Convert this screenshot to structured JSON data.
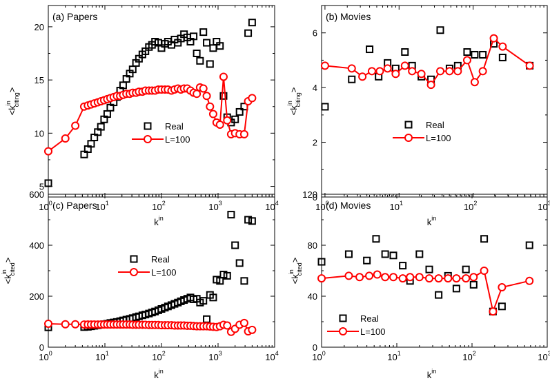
{
  "chart_data": [
    {
      "type": "scatter",
      "panel_label": "(a) Papers",
      "xlabel": "k",
      "xlabel_sup": "in",
      "ylabel": "<k",
      "ylabel_sup": "in",
      "ylabel_sub": "citing",
      "ylabel_end": ">",
      "xscale": "log",
      "xlim": [
        1,
        10000
      ],
      "ylim": [
        4,
        22
      ],
      "yticks": [
        5,
        10,
        15,
        20
      ],
      "legend_position": "bottom-center",
      "series": [
        {
          "name": "Real",
          "marker": "square",
          "color": "#000000",
          "connected": false,
          "x": [
            1,
            4.3,
            5,
            5.7,
            6.5,
            7.5,
            8.5,
            9.7,
            11,
            12.5,
            14.3,
            16.3,
            18.6,
            21,
            24,
            27.5,
            31,
            35.5,
            40,
            46,
            52,
            60,
            68,
            77,
            88,
            100,
            115,
            130,
            150,
            170,
            195,
            220,
            250,
            285,
            325,
            370,
            420,
            480,
            550,
            630,
            720,
            820,
            940,
            1080,
            1250,
            1450,
            1700,
            2000,
            2400,
            2900,
            3400,
            4000
          ],
          "y": [
            5.3,
            8.0,
            8.5,
            9.0,
            9.6,
            10.1,
            10.6,
            11.3,
            11.8,
            12.4,
            12.9,
            13.4,
            14.0,
            14.5,
            15.1,
            15.6,
            16.0,
            16.6,
            17.0,
            17.4,
            17.7,
            18.1,
            18.3,
            18.6,
            18.5,
            18.0,
            18.4,
            18.6,
            18.3,
            18.8,
            18.5,
            18.9,
            19.3,
            19.0,
            18.6,
            19.1,
            17.5,
            16.8,
            19.5,
            18.5,
            16.5,
            18.0,
            18.6,
            18.2,
            13.5,
            11.5,
            11.0,
            11.3,
            12.0,
            12.5,
            19.4,
            20.4
          ]
        },
        {
          "name": "L=100",
          "marker": "circle",
          "color": "#ff0000",
          "connected": true,
          "x": [
            1,
            2,
            3,
            4.3,
            5,
            5.7,
            6.5,
            7.5,
            8.5,
            9.7,
            11,
            12.5,
            14.3,
            16.3,
            18.6,
            21,
            24,
            27.5,
            31,
            35.5,
            40,
            46,
            52,
            60,
            68,
            77,
            88,
            100,
            115,
            130,
            150,
            170,
            195,
            220,
            250,
            285,
            325,
            370,
            420,
            480,
            550,
            630,
            720,
            820,
            940,
            1080,
            1250,
            1450,
            1700,
            2000,
            2400,
            2900,
            3400,
            4000
          ],
          "y": [
            8.3,
            9.5,
            10.7,
            12.5,
            12.6,
            12.7,
            12.8,
            12.9,
            13.0,
            13.1,
            13.2,
            13.3,
            13.4,
            13.5,
            13.5,
            13.6,
            13.7,
            13.7,
            13.8,
            13.8,
            13.9,
            13.9,
            14.0,
            14.0,
            14.0,
            14.0,
            14.1,
            14.1,
            14.1,
            14.1,
            14.0,
            14.1,
            14.2,
            14.1,
            14.2,
            14.2,
            14.0,
            13.8,
            13.7,
            14.3,
            14.2,
            13.5,
            12.5,
            11.8,
            11.0,
            10.8,
            15.3,
            11.2,
            9.9,
            10.0,
            9.9,
            9.9,
            13.0,
            13.3
          ]
        }
      ]
    },
    {
      "type": "scatter",
      "panel_label": "(b) Movies",
      "xlabel": "k",
      "xlabel_sup": "in",
      "ylabel": "<k",
      "ylabel_sup": "in",
      "ylabel_sub": "citing",
      "ylabel_end": ">",
      "xscale": "log",
      "xlim": [
        0.9,
        1000
      ],
      "ylim": [
        0,
        7
      ],
      "yticks": [
        0,
        2,
        4,
        6
      ],
      "legend_position": "bottom-center",
      "series": [
        {
          "name": "Real",
          "marker": "square",
          "color": "#000000",
          "connected": false,
          "x": [
            1,
            2.3,
            4,
            5.3,
            7,
            9,
            12,
            15,
            20,
            27,
            36,
            48,
            62,
            83,
            105,
            135,
            190,
            250,
            580
          ],
          "y": [
            3.3,
            4.3,
            5.4,
            4.4,
            4.9,
            4.7,
            5.3,
            4.8,
            4.4,
            4.3,
            6.1,
            4.7,
            4.8,
            5.3,
            5.2,
            5.2,
            5.6,
            5.1,
            4.8
          ]
        },
        {
          "name": "L=100",
          "marker": "circle",
          "color": "#ff0000",
          "connected": true,
          "x": [
            1,
            2.3,
            3.2,
            4.3,
            5.5,
            7,
            9,
            12,
            15,
            20,
            27,
            36,
            48,
            62,
            83,
            105,
            135,
            190,
            250,
            580
          ],
          "y": [
            4.8,
            4.7,
            4.4,
            4.6,
            4.6,
            4.7,
            4.5,
            4.8,
            4.6,
            4.5,
            4.1,
            4.6,
            4.6,
            4.6,
            5.0,
            4.2,
            4.6,
            5.8,
            5.5,
            4.8
          ]
        }
      ]
    },
    {
      "type": "scatter",
      "panel_label": "(c) Papers",
      "xlabel": "k",
      "xlabel_sup": "in",
      "ylabel": "<k",
      "ylabel_sup": "in",
      "ylabel_sub": "cited",
      "ylabel_end": ">",
      "xscale": "log",
      "xlim": [
        1,
        10000
      ],
      "ylim": [
        0,
        600
      ],
      "yticks": [
        0,
        200,
        400,
        600
      ],
      "legend_position": "center",
      "series": [
        {
          "name": "Real",
          "marker": "square",
          "color": "#000000",
          "connected": false,
          "x": [
            1,
            4.3,
            5,
            5.7,
            6.5,
            7.5,
            8.5,
            9.7,
            11,
            12.5,
            14.3,
            16.3,
            18.6,
            21,
            24,
            27.5,
            31,
            35.5,
            40,
            46,
            52,
            60,
            68,
            77,
            88,
            100,
            115,
            130,
            150,
            170,
            195,
            220,
            250,
            285,
            325,
            370,
            420,
            480,
            550,
            630,
            720,
            820,
            940,
            1080,
            1250,
            1450,
            1700,
            2000,
            2400,
            2900,
            3400,
            4000
          ],
          "y": [
            78,
            79,
            80,
            82,
            84,
            86,
            88,
            90,
            92,
            95,
            97,
            99,
            102,
            105,
            108,
            111,
            114,
            118,
            121,
            125,
            128,
            132,
            136,
            140,
            145,
            150,
            155,
            160,
            165,
            170,
            175,
            180,
            185,
            190,
            195,
            188,
            190,
            175,
            182,
            110,
            205,
            195,
            265,
            260,
            285,
            280,
            520,
            400,
            330,
            260,
            500,
            495
          ]
        },
        {
          "name": "L=100",
          "marker": "circle",
          "color": "#ff0000",
          "connected": true,
          "x": [
            1,
            2,
            3,
            4.3,
            5,
            5.7,
            6.5,
            7.5,
            8.5,
            9.7,
            11,
            12.5,
            14.3,
            16.3,
            18.6,
            21,
            24,
            27.5,
            31,
            35.5,
            40,
            46,
            52,
            60,
            68,
            77,
            88,
            100,
            115,
            130,
            150,
            170,
            195,
            220,
            250,
            285,
            325,
            370,
            420,
            480,
            550,
            630,
            720,
            820,
            940,
            1080,
            1250,
            1450,
            1700,
            2000,
            2400,
            2900,
            3400,
            4000
          ],
          "y": [
            92,
            90,
            90,
            89,
            89,
            89,
            89,
            89,
            89,
            89,
            89,
            89,
            89,
            89,
            89,
            89,
            89,
            89,
            88,
            88,
            88,
            88,
            88,
            87,
            87,
            87,
            87,
            86,
            86,
            86,
            86,
            85,
            85,
            85,
            85,
            84,
            84,
            83,
            82,
            82,
            82,
            82,
            81,
            80,
            79,
            82,
            88,
            85,
            60,
            72,
            88,
            95,
            62,
            68
          ]
        }
      ]
    },
    {
      "type": "scatter",
      "panel_label": "(d) Movies",
      "xlabel": "k",
      "xlabel_sup": "in",
      "ylabel": "<k",
      "ylabel_sup": "in",
      "ylabel_sub": "cited",
      "ylabel_end": ">",
      "xscale": "log",
      "xlim": [
        1,
        1000
      ],
      "ylim": [
        0,
        120
      ],
      "yticks": [
        0,
        40,
        80,
        120
      ],
      "legend_position": "bottom-left",
      "series": [
        {
          "name": "Real",
          "marker": "square",
          "color": "#000000",
          "connected": false,
          "x": [
            1,
            2.3,
            4,
            5.3,
            7,
            9,
            12,
            15,
            20,
            27,
            36,
            48,
            62,
            83,
            105,
            145,
            190,
            250,
            580
          ],
          "y": [
            67,
            73,
            68,
            85,
            73,
            72,
            64,
            52,
            73,
            61,
            41,
            56,
            46,
            61,
            49,
            85,
            28,
            32,
            80
          ]
        },
        {
          "name": "L=100",
          "marker": "circle",
          "color": "#ff0000",
          "connected": true,
          "x": [
            1,
            2.3,
            3.2,
            4.3,
            5.5,
            7,
            9,
            12,
            15,
            20,
            27,
            36,
            48,
            62,
            83,
            105,
            145,
            190,
            250,
            580
          ],
          "y": [
            54,
            56,
            55,
            56,
            57,
            55,
            55,
            54,
            55,
            55,
            54,
            54,
            54,
            54,
            54,
            55,
            60,
            28,
            47,
            52
          ]
        }
      ]
    }
  ]
}
